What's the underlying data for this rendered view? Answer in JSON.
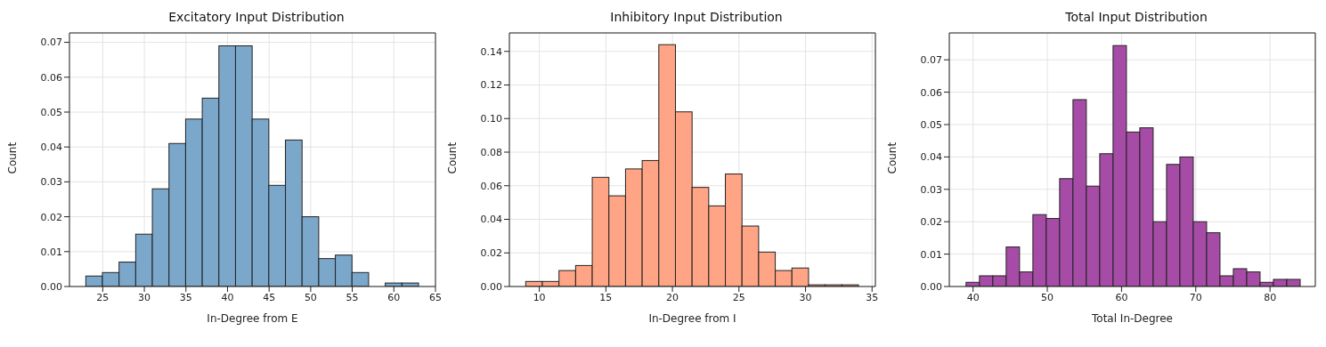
{
  "chart_data": [
    {
      "type": "histogram",
      "title": "Excitatory Input Distribution",
      "xlabel": "In-Degree from E",
      "ylabel": "Count",
      "color": "#7ba7cb",
      "bins": [
        23,
        25,
        27,
        29,
        31,
        33,
        35,
        37,
        39,
        41,
        43,
        45,
        47,
        49,
        51,
        53,
        55,
        57,
        59,
        61,
        63
      ],
      "values": [
        0.003,
        0.004,
        0.007,
        0.015,
        0.028,
        0.041,
        0.048,
        0.054,
        0.069,
        0.069,
        0.048,
        0.029,
        0.042,
        0.02,
        0.008,
        0.009,
        0.004,
        0,
        0.001,
        0.001
      ],
      "xlim": [
        21,
        65
      ],
      "xticks": [
        25,
        30,
        35,
        40,
        45,
        50,
        55,
        60,
        65
      ],
      "ylim": [
        0,
        0.0727
      ],
      "yticks": [
        {
          "value": 0,
          "label": "0.00"
        },
        {
          "value": 0.01,
          "label": "0.01"
        },
        {
          "value": 0.02,
          "label": "0.02"
        },
        {
          "value": 0.03,
          "label": "0.03"
        },
        {
          "value": 0.04,
          "label": "0.04"
        },
        {
          "value": 0.05,
          "label": "0.05"
        },
        {
          "value": 0.06,
          "label": "0.06"
        },
        {
          "value": 0.07,
          "label": "0.07"
        }
      ],
      "grid": true
    },
    {
      "type": "histogram",
      "title": "Inhibitory Input Distribution",
      "xlabel": "In-Degree from I",
      "ylabel": "Count",
      "color": "#ffa585",
      "bins": [
        9,
        10.25,
        11.5,
        12.75,
        14,
        15.25,
        16.5,
        17.75,
        19,
        20.25,
        21.5,
        22.75,
        24,
        25.25,
        26.5,
        27.75,
        29,
        30.25,
        31.5,
        32.75,
        34
      ],
      "values": [
        0.003,
        0.003,
        0.0095,
        0.0125,
        0.065,
        0.054,
        0.07,
        0.075,
        0.144,
        0.104,
        0.059,
        0.048,
        0.067,
        0.036,
        0.0205,
        0.0095,
        0.011,
        0.001,
        0.001,
        0.001
      ],
      "xlim": [
        7.75,
        35.25
      ],
      "xticks": [
        10,
        15,
        20,
        25,
        30,
        35
      ],
      "ylim": [
        0,
        0.151
      ],
      "yticks": [
        {
          "value": 0,
          "label": "0.00"
        },
        {
          "value": 0.02,
          "label": "0.02"
        },
        {
          "value": 0.04,
          "label": "0.04"
        },
        {
          "value": 0.06,
          "label": "0.06"
        },
        {
          "value": 0.08,
          "label": "0.08"
        },
        {
          "value": 0.1,
          "label": "0.10"
        },
        {
          "value": 0.12,
          "label": "0.12"
        },
        {
          "value": 0.14,
          "label": "0.14"
        }
      ],
      "grid": true
    },
    {
      "type": "histogram",
      "title": "Total Input Distribution",
      "xlabel": "Total In-Degree",
      "ylabel": "Count",
      "color": "#a64ca6",
      "bins": [
        39,
        40.8,
        42.6,
        44.4,
        46.2,
        48,
        49.8,
        51.6,
        53.4,
        55.2,
        57,
        58.8,
        60.6,
        62.4,
        64.2,
        66,
        67.8,
        69.6,
        71.4,
        73.2,
        75,
        76.8,
        78.6,
        80.4,
        82.2,
        84
      ],
      "values": [
        0.0013,
        0.0033,
        0.0033,
        0.0122,
        0.0045,
        0.0222,
        0.021,
        0.0333,
        0.0577,
        0.031,
        0.041,
        0.0744,
        0.0477,
        0.049,
        0.02,
        0.0377,
        0.04,
        0.02,
        0.0166,
        0.0033,
        0.0055,
        0.0045,
        0.0013,
        0.0022,
        0.0022
      ],
      "xlim": [
        36.8,
        86.1
      ],
      "xticks": [
        40,
        50,
        60,
        70,
        80
      ],
      "ylim": [
        0,
        0.0783
      ],
      "yticks": [
        {
          "value": 0,
          "label": "0.00"
        },
        {
          "value": 0.01,
          "label": "0.01"
        },
        {
          "value": 0.02,
          "label": "0.02"
        },
        {
          "value": 0.03,
          "label": "0.03"
        },
        {
          "value": 0.04,
          "label": "0.04"
        },
        {
          "value": 0.05,
          "label": "0.05"
        },
        {
          "value": 0.06,
          "label": "0.06"
        },
        {
          "value": 0.07,
          "label": "0.07"
        }
      ],
      "grid": true
    }
  ]
}
